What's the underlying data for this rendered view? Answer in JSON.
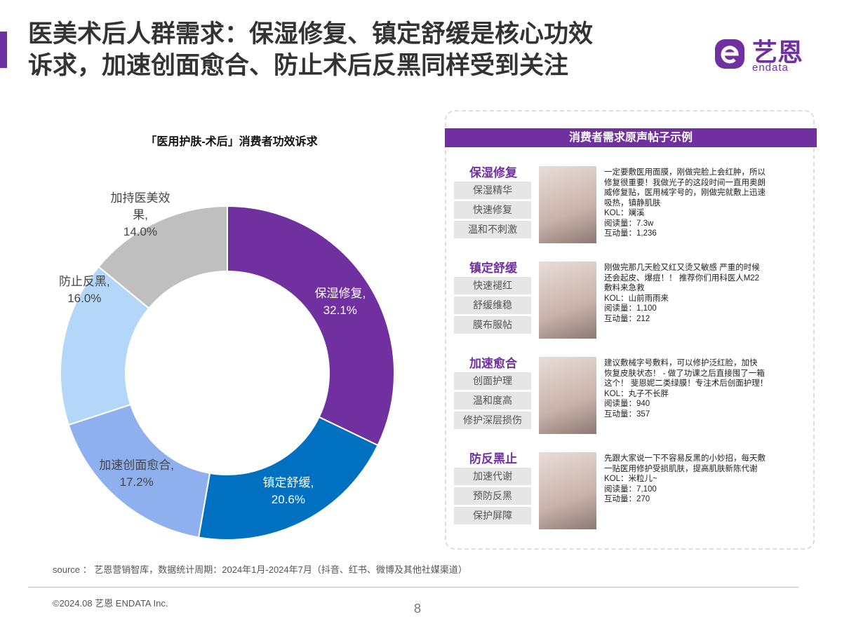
{
  "header": {
    "title_lines": [
      "医美术后人群需求：保湿修复、镇定舒缓是核心功效",
      "诉求，加速创面愈合、防止术后反黑同样受到关注"
    ],
    "logo_text": "艺恩",
    "logo_sub": "endata"
  },
  "chart_data": {
    "type": "pie",
    "title": "「医用护肤-术后」消费者功效诉求",
    "categories": [
      "保湿修复,",
      "镇定舒缓,",
      "加速创面愈合,",
      "防止反黑,",
      "加持医美效果,"
    ],
    "values": [
      32.1,
      20.6,
      17.2,
      16.0,
      14.0
    ],
    "value_labels": [
      "32.1%",
      "20.6%",
      "17.2%",
      "16.0%",
      "14.0%"
    ],
    "colors": [
      "#7030a0",
      "#0070c0",
      "#8fb0ee",
      "#b4d6f8",
      "#bfbfbf"
    ]
  },
  "panel": {
    "title": "消费者需求原声帖子示例",
    "groups": [
      {
        "heading": "保湿修复",
        "tags": [
          "保湿精华",
          "快速修复",
          "温和不刺激"
        ],
        "post": [
          "一定要敷医用面膜，刚做完脸上会红肿，所以",
          "修复很重要！我做光子的这段时间一直用奥朗",
          "威修复贴，医用械字号的，刚做完就敷上迅速",
          "吸热，镇静肌肤",
          "KOL：斓溪",
          "阅读量：7.3w",
          "互动量：1,236"
        ]
      },
      {
        "heading": "镇定舒缓",
        "tags": [
          "快速褪红",
          "舒缓维稳",
          "膜布服帖"
        ],
        "post": [
          "刚做完那几天脸又红又烫又敏感 严重的时候",
          "还会起皮、爆痘！！ 推荐你们用科医人M22",
          "敷料来急救",
          "KOL：山前雨雨来",
          "阅读量：1,100",
          "互动量：212"
        ]
      },
      {
        "heading": "加速愈合",
        "tags": [
          "创面护理",
          "温和度高",
          "修护深层损伤"
        ],
        "post": [
          "建议敷械字号敷料，可以修护泛红脸，加快",
          "恢复皮肤状态！ - 做了功课之后直接囤了一箱",
          "这个！    斐恩妮二类绿膜！专注术后创面护理！",
          "KOL：丸子不长胖",
          "阅读量：940",
          "互动量：357"
        ]
      },
      {
        "heading": "防反黑止",
        "tags": [
          "加速代谢",
          "预防反黑",
          "保护屏障"
        ],
        "post": [
          "先跟大家说一下不容易反黑的小妙招，每天敷",
          "一贴医用修护受损肌肤，提高肌肤新陈代谢",
          "KOL：米粒儿~",
          "阅读量：7,100",
          "互动量：270"
        ]
      }
    ]
  },
  "footer": {
    "source": "source ： 艺恩营销智库，数据统计周期：2024年1月-2024年7月（抖音、红书、微博及其他社媒渠道）",
    "copyright": "©2024.08  艺恩 ENDATA Inc.",
    "page": "8"
  }
}
